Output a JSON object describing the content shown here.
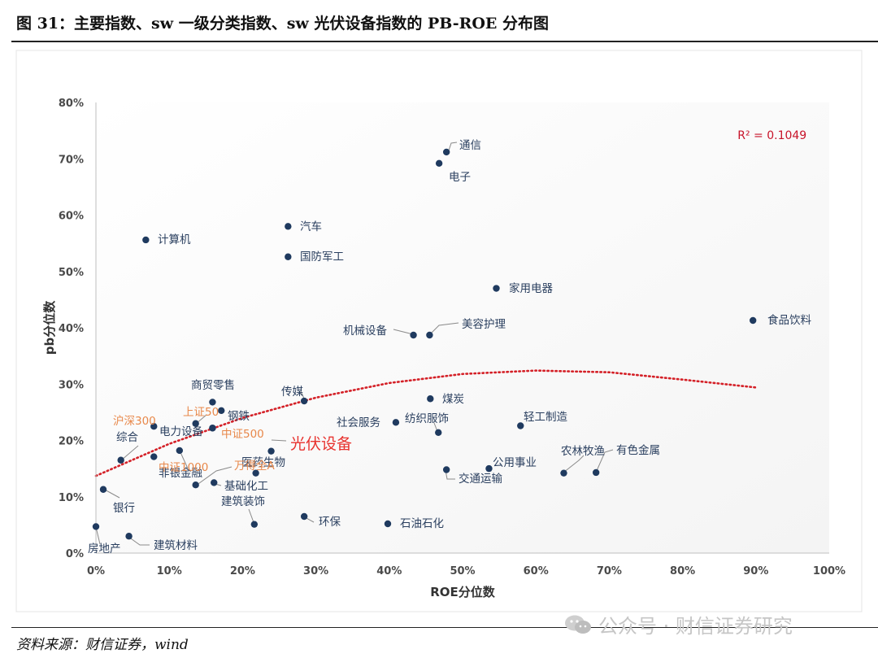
{
  "figure": {
    "title": "图 31：主要指数、sw 一级分类指数、sw 光伏设备指数的 PB-ROE 分布图",
    "source": "资料来源：财信证券，wind",
    "watermark": "公众号 · 财信证券研究"
  },
  "colors": {
    "point": "#1f3a5f",
    "label": "#2a3f5f",
    "benchmark_label": "#e8884a",
    "highlight_label": "#e8332f",
    "trendline": "#d42027",
    "plot_background": "#f4f4f4"
  },
  "chart_data": {
    "type": "scatter",
    "xlabel": "ROE分位数",
    "ylabel": "pb分位数",
    "xlim": [
      0,
      1
    ],
    "ylim": [
      0,
      0.8
    ],
    "x_ticks": [
      "0%",
      "10%",
      "20%",
      "30%",
      "40%",
      "50%",
      "60%",
      "70%",
      "80%",
      "90%",
      "100%"
    ],
    "y_ticks": [
      "0%",
      "10%",
      "20%",
      "30%",
      "40%",
      "50%",
      "60%",
      "70%",
      "80%"
    ],
    "grid": false,
    "trendline": {
      "type": "polynomial",
      "label": "R² = 0.1049",
      "curve": [
        {
          "x": 0.0,
          "y": 0.137
        },
        {
          "x": 0.1,
          "y": 0.194
        },
        {
          "x": 0.2,
          "y": 0.24
        },
        {
          "x": 0.3,
          "y": 0.276
        },
        {
          "x": 0.4,
          "y": 0.302
        },
        {
          "x": 0.5,
          "y": 0.318
        },
        {
          "x": 0.6,
          "y": 0.324
        },
        {
          "x": 0.7,
          "y": 0.321
        },
        {
          "x": 0.8,
          "y": 0.308
        },
        {
          "x": 0.9,
          "y": 0.294
        }
      ]
    },
    "points": [
      {
        "name": "通信",
        "x": 0.478,
        "y": 0.712,
        "kind": "sector"
      },
      {
        "name": "电子",
        "x": 0.468,
        "y": 0.692,
        "kind": "sector"
      },
      {
        "name": "计算机",
        "x": 0.068,
        "y": 0.556,
        "kind": "sector"
      },
      {
        "name": "汽车",
        "x": 0.262,
        "y": 0.58,
        "kind": "sector"
      },
      {
        "name": "国防军工",
        "x": 0.262,
        "y": 0.526,
        "kind": "sector"
      },
      {
        "name": "家用电器",
        "x": 0.546,
        "y": 0.47,
        "kind": "sector"
      },
      {
        "name": "食品饮料",
        "x": 0.896,
        "y": 0.413,
        "kind": "sector"
      },
      {
        "name": "机械设备",
        "x": 0.433,
        "y": 0.387,
        "kind": "sector"
      },
      {
        "name": "美容护理",
        "x": 0.455,
        "y": 0.387,
        "kind": "sector"
      },
      {
        "name": "煤炭",
        "x": 0.456,
        "y": 0.274,
        "kind": "sector"
      },
      {
        "name": "传媒",
        "x": 0.284,
        "y": 0.27,
        "kind": "sector"
      },
      {
        "name": "商贸零售",
        "x": 0.159,
        "y": 0.268,
        "kind": "sector"
      },
      {
        "name": "钢铁",
        "x": 0.171,
        "y": 0.253,
        "kind": "sector"
      },
      {
        "name": "社会服务",
        "x": 0.409,
        "y": 0.232,
        "kind": "sector"
      },
      {
        "name": "纺织服饰",
        "x": 0.467,
        "y": 0.214,
        "kind": "sector"
      },
      {
        "name": "轻工制造",
        "x": 0.579,
        "y": 0.226,
        "kind": "sector"
      },
      {
        "name": "电力设备",
        "x": 0.159,
        "y": 0.222,
        "kind": "sector"
      },
      {
        "name": "综合",
        "x": 0.034,
        "y": 0.165,
        "kind": "sector"
      },
      {
        "name": "医药生物",
        "x": 0.218,
        "y": 0.142,
        "kind": "sector"
      },
      {
        "name": "公用事业",
        "x": 0.536,
        "y": 0.15,
        "kind": "sector"
      },
      {
        "name": "交通运输",
        "x": 0.478,
        "y": 0.148,
        "kind": "sector"
      },
      {
        "name": "农林牧渔",
        "x": 0.638,
        "y": 0.142,
        "kind": "sector"
      },
      {
        "name": "有色金属",
        "x": 0.682,
        "y": 0.143,
        "kind": "sector"
      },
      {
        "name": "非银金融",
        "x": 0.136,
        "y": 0.121,
        "kind": "sector"
      },
      {
        "name": "基础化工",
        "x": 0.161,
        "y": 0.125,
        "kind": "sector"
      },
      {
        "name": "银行",
        "x": 0.01,
        "y": 0.113,
        "kind": "sector"
      },
      {
        "name": "环保",
        "x": 0.284,
        "y": 0.065,
        "kind": "sector"
      },
      {
        "name": "石油石化",
        "x": 0.398,
        "y": 0.052,
        "kind": "sector"
      },
      {
        "name": "建筑装饰",
        "x": 0.216,
        "y": 0.051,
        "kind": "sector"
      },
      {
        "name": "房地产",
        "x": 0.0,
        "y": 0.047,
        "kind": "sector"
      },
      {
        "name": "建筑材料",
        "x": 0.045,
        "y": 0.03,
        "kind": "sector"
      },
      {
        "name": "沪深300",
        "x": 0.079,
        "y": 0.225,
        "kind": "index"
      },
      {
        "name": "上证50",
        "x": 0.136,
        "y": 0.23,
        "kind": "index"
      },
      {
        "name": "中证500",
        "x": 0.159,
        "y": 0.222,
        "kind": "index"
      },
      {
        "name": "中证1000",
        "x": 0.114,
        "y": 0.182,
        "kind": "index"
      },
      {
        "name": "万得全A",
        "x": 0.079,
        "y": 0.171,
        "kind": "index"
      },
      {
        "name": "光伏设备",
        "x": 0.239,
        "y": 0.181,
        "kind": "highlight"
      }
    ]
  }
}
